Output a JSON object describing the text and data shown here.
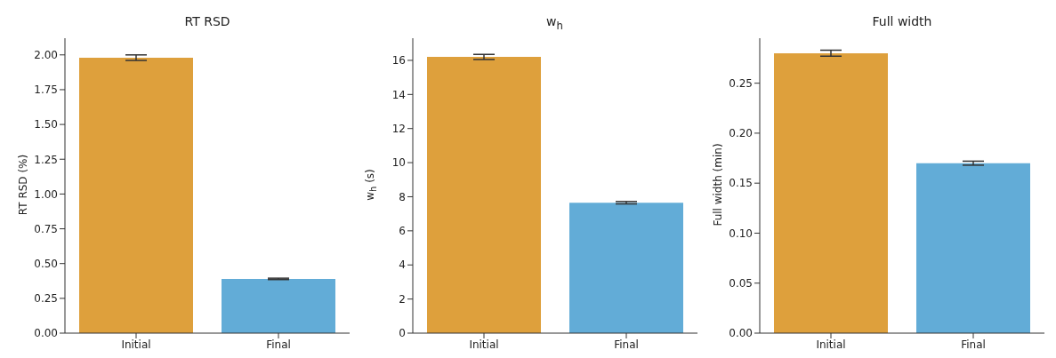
{
  "chart_data": [
    {
      "type": "bar",
      "title": "RT RSD",
      "ylabel": "RT RSD (%)",
      "categories": [
        "Initial",
        "Final"
      ],
      "values": [
        1.98,
        0.39
      ],
      "colors": [
        "#dea03c",
        "#62acd7"
      ],
      "errors": [
        0.02,
        0.005
      ],
      "ylim": [
        0,
        2.12
      ],
      "yticks": [
        {
          "value": 0,
          "label": "0.00"
        },
        0.25,
        {
          "value": 0.5,
          "label": "0.50"
        },
        0.75,
        {
          "value": 1,
          "label": "1.00"
        },
        1.25,
        {
          "value": 1.5,
          "label": "1.50"
        },
        1.75,
        {
          "value": 2,
          "label": "2.00"
        }
      ],
      "grid": false,
      "legend": false
    },
    {
      "type": "bar",
      "title": "w$_{h}$",
      "ylabel": "w$_{h}$ (s)",
      "categories": [
        "Initial",
        "Final"
      ],
      "values": [
        16.2,
        7.65
      ],
      "colors": [
        "#dea03c",
        "#62acd7"
      ],
      "errors": [
        0.15,
        0.07
      ],
      "ylim": [
        0,
        17.3
      ],
      "yticks": [
        0,
        2,
        4,
        6,
        8,
        10,
        12,
        14,
        16
      ],
      "grid": false,
      "legend": false
    },
    {
      "type": "bar",
      "title": "Full width",
      "ylabel": "Full width (min)",
      "categories": [
        "Initial",
        "Final"
      ],
      "values": [
        0.28,
        0.17
      ],
      "colors": [
        "#dea03c",
        "#62acd7"
      ],
      "errors": [
        0.003,
        0.002
      ],
      "ylim": [
        0,
        0.295
      ],
      "yticks": [
        {
          "value": 0,
          "label": "0.00"
        },
        0.05,
        {
          "value": 0.1,
          "label": "0.10"
        },
        0.15,
        {
          "value": 0.2,
          "label": "0.20"
        },
        0.25
      ],
      "grid": false,
      "legend": false
    }
  ]
}
